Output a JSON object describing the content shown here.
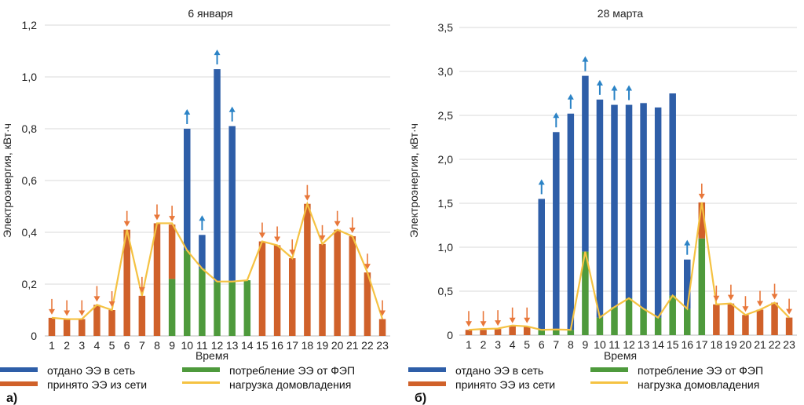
{
  "colors": {
    "export": "#2e5ea8",
    "import": "#d0612a",
    "pv": "#4e9a3c",
    "load": "#f5c242",
    "arrow_up": "#2b83c6",
    "arrow_down": "#e8773a",
    "grid": "#d8d8d8"
  },
  "chart_data": [
    {
      "panel_label": "а)",
      "type": "bar",
      "stacked": true,
      "title": "6 января",
      "xlabel": "Время",
      "ylabel": "Электроэнергия, кВт·ч",
      "ylim": [
        0,
        1.2
      ],
      "yticks": [
        "0",
        "0,2",
        "0,4",
        "0,6",
        "0,8",
        "1,0",
        "1,2"
      ],
      "ytick_values": [
        0,
        0.2,
        0.4,
        0.6,
        0.8,
        1.0,
        1.2
      ],
      "categories": [
        "1",
        "2",
        "3",
        "4",
        "5",
        "6",
        "7",
        "8",
        "9",
        "10",
        "11",
        "12",
        "13",
        "14",
        "15",
        "16",
        "17",
        "18",
        "19",
        "20",
        "21",
        "22",
        "23"
      ],
      "series": [
        {
          "name": "потребление ЭЭ от ФЭП",
          "key": "pv",
          "values": [
            0,
            0,
            0,
            0,
            0,
            0,
            0,
            0,
            0.22,
            0.33,
            0.26,
            0.21,
            0.21,
            0.215,
            0,
            0,
            0,
            0,
            0,
            0,
            0,
            0,
            0
          ]
        },
        {
          "name": "принято ЭЭ из сети",
          "key": "import",
          "values": [
            0.07,
            0.065,
            0.065,
            0.12,
            0.1,
            0.41,
            0.155,
            0.435,
            0.21,
            0,
            0,
            0,
            0,
            0,
            0.365,
            0.35,
            0.3,
            0.51,
            0.355,
            0.41,
            0.385,
            0.245,
            0.065
          ]
        },
        {
          "name": "отдано ЭЭ в сеть",
          "key": "export",
          "values": [
            0,
            0,
            0,
            0,
            0,
            0,
            0,
            0,
            0,
            0.47,
            0.13,
            0.82,
            0.6,
            0,
            0,
            0,
            0,
            0,
            0,
            0,
            0,
            0,
            0
          ]
        },
        {
          "name": "нагрузка домовладения",
          "key": "load",
          "type": "line",
          "values": [
            0.07,
            0.065,
            0.065,
            0.12,
            0.1,
            0.41,
            0.155,
            0.435,
            0.435,
            0.33,
            0.26,
            0.21,
            0.21,
            0.215,
            0.365,
            0.35,
            0.3,
            0.51,
            0.355,
            0.41,
            0.385,
            0.245,
            0.065
          ]
        }
      ]
    },
    {
      "panel_label": "б)",
      "type": "bar",
      "stacked": true,
      "title": "28 марта",
      "xlabel": "Время",
      "ylabel": "Электроэнергия, кВт·ч",
      "ylim": [
        0,
        3.5
      ],
      "yticks": [
        "0",
        "0,5",
        "1,0",
        "1,5",
        "2,0",
        "2,5",
        "3,0",
        "3,5"
      ],
      "ytick_values": [
        0,
        0.5,
        1.0,
        1.5,
        2.0,
        2.5,
        3.0,
        3.5
      ],
      "categories": [
        "1",
        "2",
        "3",
        "4",
        "5",
        "6",
        "7",
        "8",
        "9",
        "10",
        "11",
        "12",
        "13",
        "14",
        "15",
        "16",
        "17",
        "18",
        "19",
        "20",
        "21",
        "22",
        "23"
      ],
      "series": [
        {
          "name": "потребление ЭЭ от ФЭП",
          "key": "pv",
          "values": [
            0,
            0,
            0,
            0,
            0,
            0.06,
            0.065,
            0.06,
            0.95,
            0.2,
            0.32,
            0.42,
            0.3,
            0.2,
            0.45,
            0.3,
            1.1,
            0,
            0,
            0,
            0,
            0,
            0
          ]
        },
        {
          "name": "принято ЭЭ из сети",
          "key": "import",
          "values": [
            0.06,
            0.06,
            0.07,
            0.1,
            0.1,
            0,
            0,
            0,
            0,
            0,
            0,
            0,
            0,
            0,
            0,
            0,
            0.41,
            0.35,
            0.36,
            0.23,
            0.29,
            0.37,
            0.2
          ]
        },
        {
          "name": "отдано ЭЭ в сеть",
          "key": "export",
          "values": [
            0,
            0,
            0,
            0,
            0,
            1.49,
            2.245,
            2.46,
            2.0,
            2.48,
            2.3,
            2.2,
            2.34,
            2.39,
            2.3,
            0.56,
            0,
            0,
            0,
            0,
            0,
            0,
            0
          ]
        },
        {
          "name": "нагрузка домовладения",
          "key": "load",
          "type": "line",
          "values": [
            0.06,
            0.07,
            0.075,
            0.11,
            0.1,
            0.06,
            0.065,
            0.06,
            0.95,
            0.2,
            0.32,
            0.42,
            0.3,
            0.2,
            0.45,
            0.3,
            1.51,
            0.35,
            0.36,
            0.23,
            0.29,
            0.37,
            0.2
          ]
        }
      ]
    }
  ],
  "arrows": [
    {
      "up": [
        "10",
        "11",
        "12",
        "13"
      ],
      "down": [
        "1",
        "2",
        "3",
        "4",
        "5",
        "6",
        "7",
        "8",
        "9",
        "15",
        "16",
        "17",
        "18",
        "19",
        "20",
        "21",
        "22",
        "23"
      ]
    },
    {
      "up": [
        "6",
        "7",
        "8",
        "9",
        "10",
        "11",
        "12",
        "16"
      ],
      "down": [
        "1",
        "2",
        "3",
        "4",
        "5",
        "17",
        "18",
        "19",
        "20",
        "21",
        "22",
        "23"
      ]
    }
  ],
  "legend": {
    "export": "отдано ЭЭ в сеть",
    "import": "принято ЭЭ из сети",
    "pv": "потребление ЭЭ от ФЭП",
    "load": "нагрузка домовладения"
  }
}
